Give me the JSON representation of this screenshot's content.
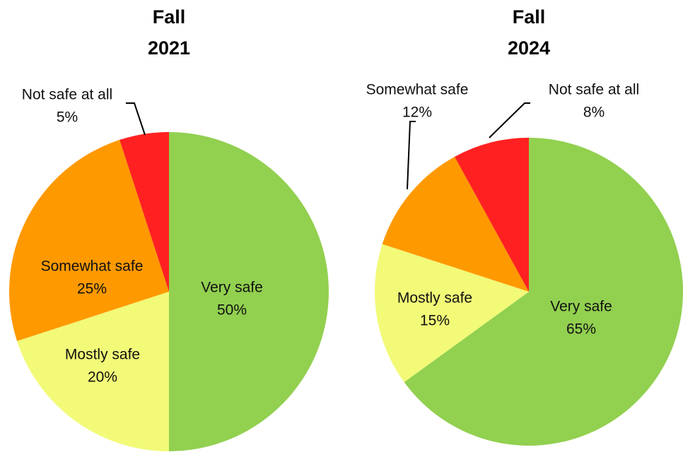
{
  "chart_data": [
    {
      "type": "pie",
      "title": "Fall 2021",
      "categories": [
        "Very safe",
        "Mostly safe",
        "Somewhat safe",
        "Not safe at all"
      ],
      "values": [
        50,
        20,
        25,
        5
      ],
      "value_labels": [
        "50%",
        "20%",
        "25%",
        "5%"
      ],
      "colors": [
        "#92d050",
        "#f2fa78",
        "#ff9900",
        "#ff2121"
      ]
    },
    {
      "type": "pie",
      "title": "Fall 2024",
      "categories": [
        "Very safe",
        "Mostly safe",
        "Somewhat safe",
        "Not safe at all"
      ],
      "values": [
        65,
        15,
        12,
        8
      ],
      "value_labels": [
        "65%",
        "15%",
        "12%",
        "8%"
      ],
      "colors": [
        "#92d050",
        "#f2fa78",
        "#ff9900",
        "#ff2121"
      ]
    }
  ]
}
